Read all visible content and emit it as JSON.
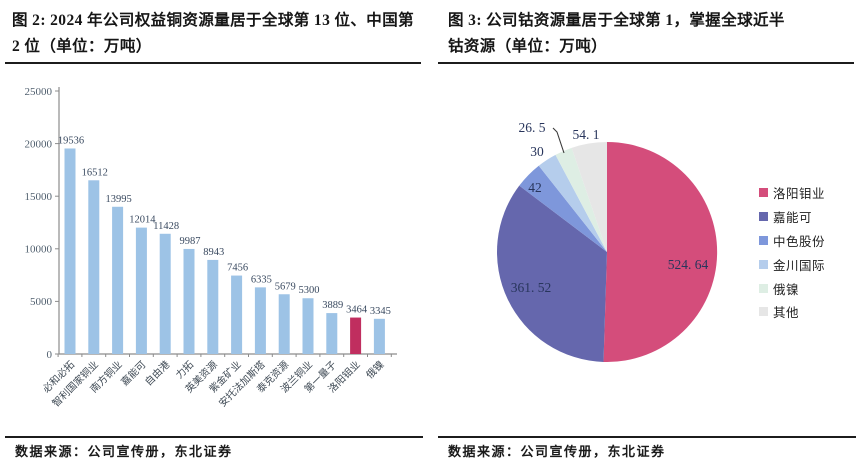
{
  "figure2": {
    "title": "图 2: 2024 年公司权益铜资源量居于全球第 13 位、中国第 2 位（单位：万吨）",
    "source": "数据来源：公司宣传册，东北证券"
  },
  "figure3": {
    "title": "图 3: 公司钴资源量居于全球第 1，掌握全球近半钴资源（单位：万吨）",
    "source": "数据来源：公司宣传册，东北证券"
  },
  "chart_data": [
    {
      "id": "copper-bar-chart",
      "type": "bar",
      "title": "2024 年公司权益铜资源量居于全球第 13 位、中国第 2 位",
      "unit": "万吨",
      "categories": [
        "必和必拓",
        "智利国家铜业",
        "南方铜业",
        "嘉能可",
        "自由港",
        "力拓",
        "英美资源",
        "紫金矿业",
        "安托法加斯塔",
        "泰克资源",
        "波兰铜业",
        "第一量子",
        "洛阳钼业",
        "俄镍"
      ],
      "values": [
        19536,
        16512,
        13995,
        12014,
        11428,
        9987,
        8943,
        7456,
        6335,
        5679,
        5300,
        3889,
        3464,
        3345
      ],
      "value_labels": [
        "19536",
        "16512",
        "13995",
        "12014",
        "11428",
        "9987",
        "8943",
        "7456",
        "6335",
        "5679",
        "5300",
        "3889",
        "3464",
        "3345"
      ],
      "highlight_index": 12,
      "highlight_category": "洛阳钼业",
      "ylim": [
        0,
        25000
      ],
      "yticks": [
        0,
        5000,
        10000,
        15000,
        20000,
        25000
      ],
      "ytick_labels": [
        "0",
        "5000",
        "10000",
        "15000",
        "20000",
        "25000"
      ],
      "grid": false,
      "colors": {
        "bar": "#9DC3E6",
        "highlight": "#C02E5F",
        "axis": "#8C8C8C",
        "tick_text": "#51606F",
        "value_text": "#3A4A60",
        "category_text": "#3F4A55"
      }
    },
    {
      "id": "cobalt-pie-chart",
      "type": "pie",
      "title": "公司钴资源量居于全球第 1，掌握全球近半钴资源",
      "unit": "万吨",
      "labels": [
        "洛阳钼业",
        "嘉能可",
        "中色股份",
        "金川国际",
        "俄镍",
        "其他"
      ],
      "values": [
        524.64,
        361.52,
        42,
        30,
        26.5,
        54.1
      ],
      "value_labels": [
        "524. 64",
        "361. 52",
        "42",
        "30",
        "26. 5",
        "54. 1"
      ],
      "colors": [
        "#D44D7B",
        "#6567AD",
        "#7E97DB",
        "#B5CDEC",
        "#DEEEE4",
        "#E6E6E6"
      ],
      "label_text_color": "#28355C",
      "start_angle_deg": 0,
      "direction": "clockwise",
      "legend_position": "right"
    }
  ]
}
